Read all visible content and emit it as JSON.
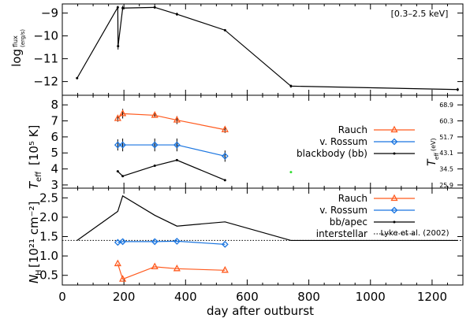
{
  "chart_data": [
    {
      "type": "line",
      "annotation": "[0.3–2.5 keV]",
      "ylabel_main": "log",
      "ylabel_sub": "flux",
      "ylabel_unit": "(erg/s)",
      "xlim": [
        0,
        1300
      ],
      "ylim": [
        -12.6,
        -8.6
      ],
      "yticks": [
        -9,
        -10,
        -11,
        -12
      ],
      "series": [
        {
          "color": "#000000",
          "points": [
            {
              "x": 48,
              "y": -11.85,
              "err": 0
            },
            {
              "x": 180,
              "y": -8.75,
              "err": 0.06
            },
            {
              "x": 181,
              "y": -10.45,
              "err": 0.15
            },
            {
              "x": 196,
              "y": -8.78,
              "err": 0.1
            },
            {
              "x": 300,
              "y": -8.75,
              "err": 0.05
            },
            {
              "x": 372,
              "y": -9.05,
              "err": 0.07
            },
            {
              "x": 528,
              "y": -9.75,
              "err": 0.03
            },
            {
              "x": 742,
              "y": -12.2,
              "err": 0.07
            },
            {
              "x": 1283,
              "y": -12.35,
              "err": 0.07
            }
          ]
        }
      ]
    },
    {
      "type": "line",
      "ylabel": "T",
      "ylabel_sub": "eff",
      "ylabel_unit": "[10⁵ K]",
      "right_label": "T",
      "right_label_sub": "eff",
      "right_label_unit": "(eV)",
      "ylim": [
        2.8,
        8.6
      ],
      "yticks": [
        3,
        4,
        5,
        6,
        7,
        8
      ],
      "right_ticks": [
        {
          "y": 8.0,
          "label": "68.9"
        },
        {
          "y": 7.0,
          "label": "60.3"
        },
        {
          "y": 6.0,
          "label": "51.7"
        },
        {
          "y": 5.0,
          "label": "43.1"
        },
        {
          "y": 4.0,
          "label": "34.5"
        },
        {
          "y": 3.0,
          "label": "25.9"
        }
      ],
      "legend": [
        {
          "label": "Rauch",
          "color": "#ff5a1e",
          "marker": "triangle"
        },
        {
          "label": "v. Rossum",
          "color": "#1a75e0",
          "marker": "diamond"
        },
        {
          "label": "blackbody (bb)",
          "color": "#000000",
          "marker": "dot"
        }
      ],
      "series": [
        {
          "name": "Rauch",
          "color": "#ff5a1e",
          "marker": "triangle",
          "points": [
            {
              "x": 180,
              "y": 7.15,
              "err": 0.2
            },
            {
              "x": 196,
              "y": 7.45,
              "err": 0.3
            },
            {
              "x": 300,
              "y": 7.35,
              "err": 0.15
            },
            {
              "x": 372,
              "y": 7.05,
              "err": 0.25
            },
            {
              "x": 528,
              "y": 6.45,
              "err": 0.2
            }
          ]
        },
        {
          "name": "v. Rossum",
          "color": "#1a75e0",
          "marker": "diamond",
          "points": [
            {
              "x": 180,
              "y": 5.5,
              "err": 0.35
            },
            {
              "x": 196,
              "y": 5.5,
              "err": 0.4
            },
            {
              "x": 300,
              "y": 5.5,
              "err": 0.4
            },
            {
              "x": 372,
              "y": 5.5,
              "err": 0.4
            },
            {
              "x": 528,
              "y": 4.8,
              "err": 0.35
            }
          ]
        },
        {
          "name": "blackbody (bb)",
          "color": "#000000",
          "marker": "dot",
          "points": [
            {
              "x": 180,
              "y": 3.85,
              "err": 0
            },
            {
              "x": 196,
              "y": 3.55,
              "err": 0
            },
            {
              "x": 300,
              "y": 4.2,
              "err": 0
            },
            {
              "x": 372,
              "y": 4.55,
              "err": 0
            },
            {
              "x": 528,
              "y": 3.3,
              "err": 0
            }
          ]
        },
        {
          "color": "#33dd33",
          "marker": "dot",
          "points": [
            {
              "x": 742,
              "y": 3.8,
              "err": 0
            }
          ]
        }
      ]
    },
    {
      "type": "line",
      "ylabel": "N",
      "ylabel_sub": "H",
      "ylabel_unit": "[10²¹ cm⁻²]",
      "ylim": [
        0.25,
        2.75
      ],
      "yticks": [
        0.5,
        1.0,
        1.5,
        2.0,
        2.5
      ],
      "ytick_labels": [
        "0.5",
        "1.0",
        "1.5",
        "2.0",
        "2.5"
      ],
      "xlim": [
        0,
        1300
      ],
      "xticks": [
        0,
        200,
        400,
        600,
        800,
        1000,
        1200
      ],
      "xlabel": "day after outburst",
      "legend": [
        {
          "label": "Rauch",
          "color": "#ff5a1e",
          "marker": "triangle"
        },
        {
          "label": "v. Rossum",
          "color": "#1a75e0",
          "marker": "diamond"
        },
        {
          "label": "bb/apec",
          "color": "#000000",
          "marker": "dot"
        },
        {
          "label": "interstellar",
          "color": "#000000",
          "marker": "dotted"
        }
      ],
      "reference_label": "Lyke et al. (2002)",
      "interstellar": 1.4,
      "series": [
        {
          "name": "Rauch",
          "color": "#ff5a1e",
          "marker": "triangle",
          "points": [
            {
              "x": 180,
              "y": 0.8,
              "err": 0
            },
            {
              "x": 196,
              "y": 0.4,
              "err": 0
            },
            {
              "x": 300,
              "y": 0.72,
              "err": 0
            },
            {
              "x": 372,
              "y": 0.67,
              "err": 0
            },
            {
              "x": 528,
              "y": 0.63,
              "err": 0
            }
          ]
        },
        {
          "name": "v. Rossum",
          "color": "#1a75e0",
          "marker": "diamond",
          "points": [
            {
              "x": 180,
              "y": 1.35,
              "err": 0
            },
            {
              "x": 196,
              "y": 1.37,
              "err": 0
            },
            {
              "x": 300,
              "y": 1.37,
              "err": 0
            },
            {
              "x": 372,
              "y": 1.38,
              "err": 0
            },
            {
              "x": 528,
              "y": 1.3,
              "err": 0
            }
          ]
        },
        {
          "name": "bb/apec",
          "color": "#000000",
          "marker": "none",
          "points": [
            {
              "x": 48,
              "y": 1.4,
              "err": 0
            },
            {
              "x": 180,
              "y": 2.15,
              "err": 0
            },
            {
              "x": 196,
              "y": 2.55,
              "err": 0
            },
            {
              "x": 300,
              "y": 2.05,
              "err": 0
            },
            {
              "x": 372,
              "y": 1.77,
              "err": 0
            },
            {
              "x": 528,
              "y": 1.88,
              "err": 0
            },
            {
              "x": 742,
              "y": 1.4,
              "err": 0
            },
            {
              "x": 1283,
              "y": 1.4,
              "err": 0
            }
          ]
        }
      ]
    }
  ]
}
